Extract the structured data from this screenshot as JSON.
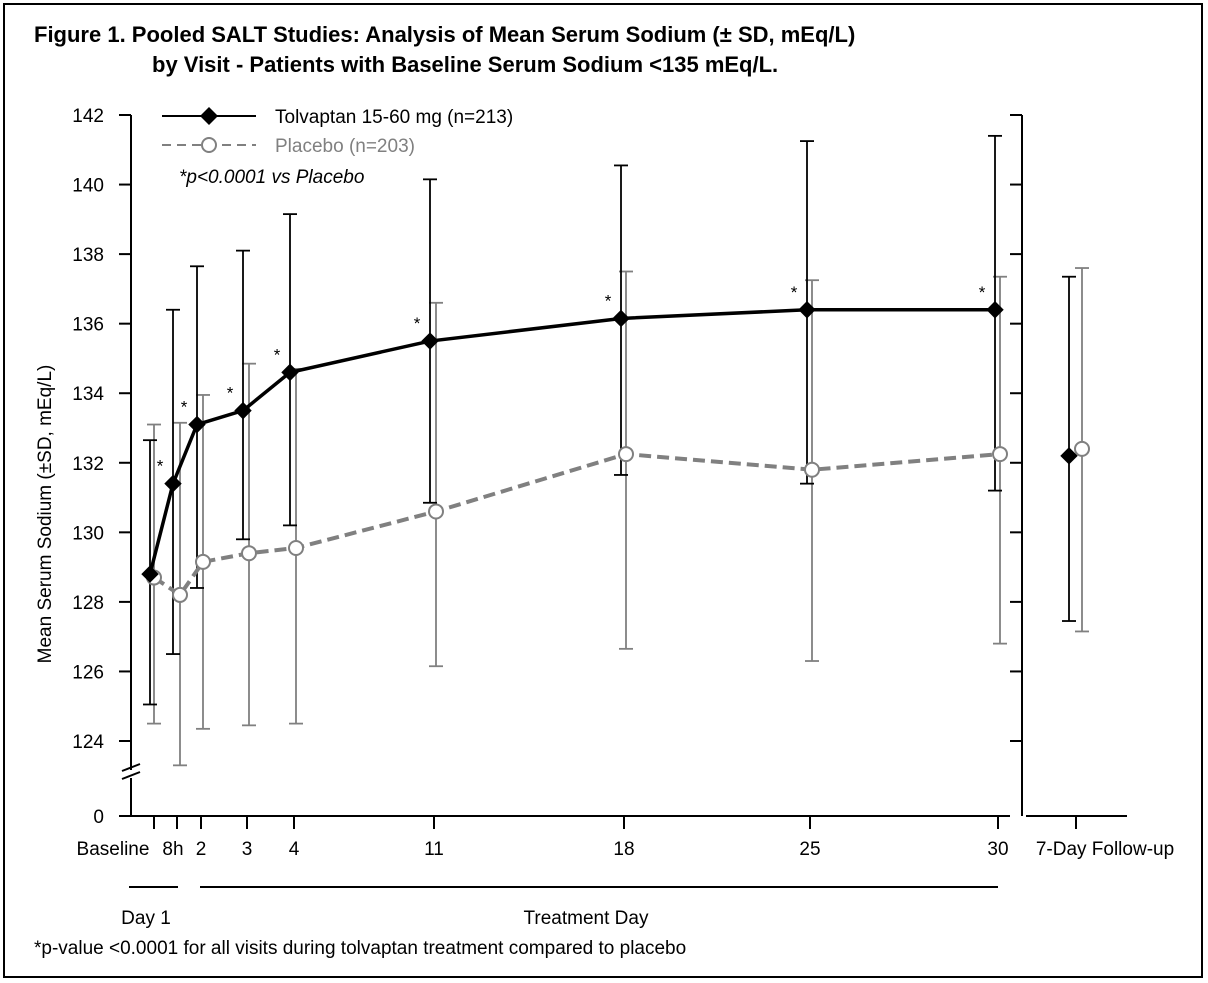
{
  "chart_data": {
    "type": "line",
    "title_line1": "Figure 1.  Pooled SALT Studies: Analysis of Mean Serum Sodium (± SD, mEq/L)",
    "title_line2": "by Visit - Patients with Baseline Serum Sodium <135 mEq/L.",
    "ylabel": "Mean Serum Sodium (±SD, mEq/L)",
    "ylim": [
      124,
      142
    ],
    "yticks": [
      "142",
      "140",
      "138",
      "136",
      "134",
      "132",
      "130",
      "128",
      "126",
      "124",
      "0"
    ],
    "y_axis_break": true,
    "categories": [
      "Baseline",
      "8h",
      "2",
      "3",
      "4",
      "11",
      "18",
      "25",
      "30",
      "7-Day Follow-up"
    ],
    "xgroups": [
      "Day 1",
      "Treatment Day"
    ],
    "significance_marker": "*",
    "legend_note": "*p<0.0001 vs Placebo",
    "footnote": "*p-value <0.0001 for all visits during tolvaptan treatment compared to placebo",
    "series": [
      {
        "name": "Tolvaptan 15-60 mg (n=213)",
        "color": "#000000",
        "marker": "diamond",
        "style": "solid",
        "mean": [
          128.8,
          131.4,
          133.1,
          133.5,
          134.6,
          135.5,
          136.15,
          136.4,
          136.4,
          132.2
        ],
        "upper": [
          132.65,
          136.4,
          137.65,
          138.1,
          139.15,
          140.15,
          140.55,
          141.25,
          141.4,
          137.35
        ],
        "lower": [
          125.05,
          126.5,
          128.4,
          129.8,
          130.2,
          130.85,
          131.65,
          131.4,
          131.2,
          127.45
        ],
        "significant": [
          false,
          true,
          true,
          true,
          true,
          true,
          true,
          true,
          true,
          false
        ]
      },
      {
        "name": "Placebo (n=203)",
        "color": "#808080",
        "marker": "circle",
        "style": "dashed",
        "mean": [
          128.7,
          128.2,
          129.15,
          129.4,
          129.55,
          130.6,
          132.25,
          131.8,
          132.25,
          132.4
        ],
        "upper": [
          133.1,
          133.15,
          133.95,
          134.85,
          134.7,
          136.6,
          137.5,
          137.25,
          137.35,
          137.6
        ],
        "lower": [
          124.5,
          123.3,
          124.35,
          124.45,
          124.5,
          126.15,
          126.65,
          126.3,
          126.8,
          127.15
        ]
      }
    ]
  }
}
